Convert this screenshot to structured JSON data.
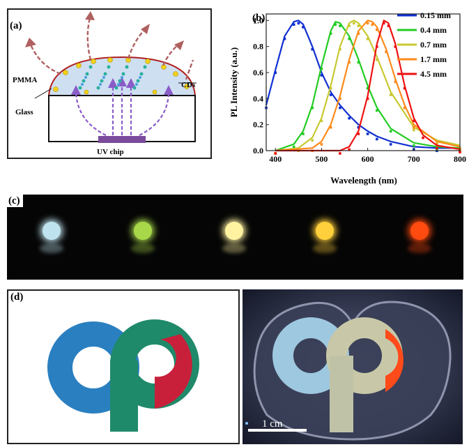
{
  "panel_a": {
    "label": "(a)",
    "pmma_label": "PMMA",
    "glass_label": "Glass",
    "cds_label": "CDs",
    "chip_label": "UV chip"
  },
  "panel_b": {
    "label": "(b)"
  },
  "panel_c": {
    "label": "(c)",
    "dot_colors": [
      "#bfe3ee",
      "#a8d84a",
      "#fff2a0",
      "#ffcf3c",
      "#ff4a10"
    ]
  },
  "panel_d": {
    "label": "(d)",
    "scale_label": "1 cm",
    "logo_colors": {
      "blue": "#2a7fc0",
      "green": "#1f8a6a",
      "red": "#c8203a"
    }
  },
  "chart_data": {
    "type": "line",
    "xlabel": "Wavelength (nm)",
    "ylabel": "PL Intensity (a.u.)",
    "xlim": [
      380,
      800
    ],
    "ylim": [
      0.0,
      1.05
    ],
    "xticks": [
      400,
      500,
      600,
      700,
      800
    ],
    "yticks": [
      "0.0",
      "0.2",
      "0.4",
      "0.6",
      "0.8",
      "1.0"
    ],
    "legend_position": "top-right",
    "series": [
      {
        "name": "0.15 mm",
        "color": "#1030d0",
        "x": [
          380,
          400,
          420,
          440,
          450,
          460,
          480,
          500,
          520,
          540,
          560,
          580,
          600,
          620,
          650,
          700,
          750,
          800
        ],
        "y": [
          0.35,
          0.62,
          0.88,
          0.99,
          1.0,
          0.97,
          0.8,
          0.6,
          0.45,
          0.35,
          0.27,
          0.2,
          0.15,
          0.11,
          0.07,
          0.03,
          0.02,
          0.02
        ]
      },
      {
        "name": "0.4 mm",
        "color": "#22cc22",
        "x": [
          400,
          440,
          460,
          480,
          500,
          520,
          530,
          540,
          560,
          580,
          600,
          620,
          650,
          700,
          750,
          800
        ],
        "y": [
          0.0,
          0.05,
          0.15,
          0.35,
          0.65,
          0.92,
          0.99,
          0.98,
          0.88,
          0.7,
          0.5,
          0.33,
          0.17,
          0.06,
          0.03,
          0.02
        ]
      },
      {
        "name": "0.7 mm",
        "color": "#c8c832",
        "x": [
          400,
          450,
          480,
          500,
          520,
          540,
          560,
          570,
          580,
          600,
          620,
          650,
          700,
          750,
          800
        ],
        "y": [
          0.0,
          0.02,
          0.1,
          0.25,
          0.5,
          0.8,
          0.98,
          1.0,
          0.98,
          0.88,
          0.72,
          0.45,
          0.18,
          0.08,
          0.04
        ]
      },
      {
        "name": "1.7 mm",
        "color": "#ff8a1a",
        "x": [
          400,
          480,
          500,
          520,
          540,
          560,
          580,
          600,
          610,
          620,
          640,
          660,
          680,
          700,
          750,
          800
        ],
        "y": [
          0.0,
          0.02,
          0.07,
          0.2,
          0.42,
          0.7,
          0.92,
          1.0,
          0.99,
          0.95,
          0.78,
          0.55,
          0.35,
          0.2,
          0.07,
          0.03
        ]
      },
      {
        "name": "4.5 mm",
        "color": "#ee1111",
        "x": [
          400,
          540,
          560,
          580,
          600,
          620,
          635,
          645,
          660,
          680,
          700,
          720,
          750,
          800
        ],
        "y": [
          0.0,
          0.0,
          0.03,
          0.15,
          0.42,
          0.82,
          1.0,
          0.98,
          0.82,
          0.5,
          0.25,
          0.12,
          0.04,
          0.01
        ]
      }
    ]
  }
}
